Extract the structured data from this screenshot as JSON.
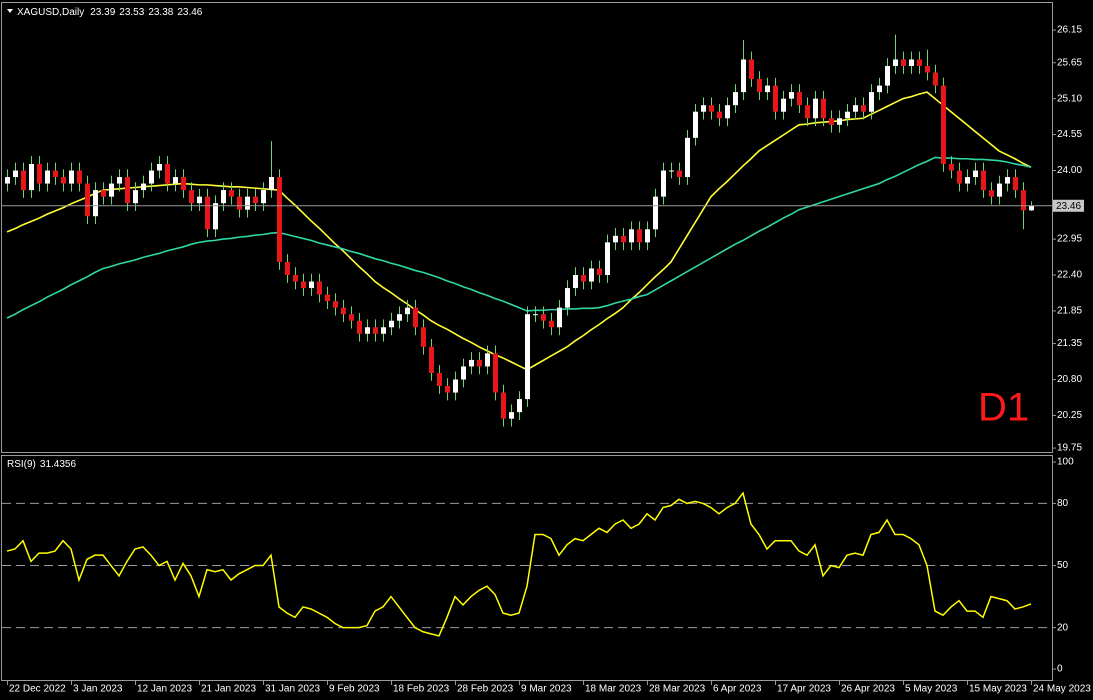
{
  "chart_data": [
    {
      "type": "candlestick",
      "title": "XAGUSD,Daily",
      "annotation": "D1",
      "up_color": "#ffffff",
      "down_color": "#e8151b",
      "wick_color": "#6fd46f",
      "categories": [
        "22 Dec 2022",
        null,
        null,
        null,
        null,
        null,
        null,
        null,
        "3 Jan 2023",
        null,
        null,
        null,
        null,
        null,
        null,
        null,
        "12 Jan 2023",
        null,
        null,
        null,
        null,
        null,
        null,
        null,
        "21 Jan 2023",
        null,
        null,
        null,
        null,
        null,
        null,
        null,
        "31 Jan 2023",
        null,
        null,
        null,
        null,
        null,
        null,
        null,
        "9 Feb 2023",
        null,
        null,
        null,
        null,
        null,
        null,
        null,
        "18 Feb 2023",
        null,
        null,
        null,
        null,
        null,
        null,
        null,
        "28 Feb 2023",
        null,
        null,
        null,
        null,
        null,
        null,
        null,
        "9 Mar 2023",
        null,
        null,
        null,
        null,
        null,
        null,
        null,
        "18 Mar 2023",
        null,
        null,
        null,
        null,
        null,
        null,
        null,
        "28 Mar 2023",
        null,
        null,
        null,
        null,
        null,
        null,
        null,
        "6 Apr 2023",
        null,
        null,
        null,
        null,
        null,
        null,
        null,
        "17 Apr 2023",
        null,
        null,
        null,
        null,
        null,
        null,
        null,
        "26 Apr 2023",
        null,
        null,
        null,
        null,
        null,
        null,
        null,
        "5 May 2023",
        null,
        null,
        null,
        null,
        null,
        null,
        null,
        "15 May 2023",
        null,
        null,
        null,
        null,
        null,
        null,
        null,
        "24 May 2023"
      ],
      "open": [
        23.8,
        23.9,
        24.0,
        23.7,
        24.1,
        23.8,
        24.0,
        23.9,
        23.8,
        24.0,
        23.8,
        23.3,
        23.7,
        23.6,
        23.8,
        23.9,
        23.5,
        23.7,
        23.8,
        24.0,
        24.1,
        23.8,
        23.9,
        23.7,
        23.5,
        23.6,
        23.1,
        23.5,
        23.7,
        23.6,
        23.4,
        23.6,
        23.5,
        23.7,
        23.9,
        22.6,
        22.4,
        22.3,
        22.2,
        22.3,
        22.1,
        22.0,
        21.9,
        21.8,
        21.7,
        21.5,
        21.6,
        21.5,
        21.6,
        21.7,
        21.8,
        21.9,
        21.6,
        21.3,
        20.9,
        20.7,
        20.6,
        20.8,
        21.0,
        21.1,
        21.0,
        21.2,
        20.6,
        20.2,
        20.3,
        20.5,
        21.8,
        21.8,
        21.7,
        21.6,
        21.9,
        22.2,
        22.4,
        22.3,
        22.5,
        22.4,
        22.9,
        23.0,
        22.9,
        23.1,
        22.9,
        23.1,
        23.6,
        24.0,
        24.0,
        23.9,
        24.5,
        24.9,
        25.0,
        24.9,
        24.8,
        25.0,
        25.2,
        25.7,
        25.4,
        25.2,
        25.3,
        24.9,
        25.1,
        25.2,
        25.0,
        24.8,
        25.1,
        24.8,
        24.7,
        24.8,
        24.9,
        25.0,
        24.9,
        25.2,
        25.3,
        25.6,
        25.7,
        25.6,
        25.7,
        25.6,
        25.5,
        25.3,
        24.1,
        24.0,
        23.8,
        23.9,
        24.0,
        23.7,
        23.6,
        23.8,
        23.9,
        23.7,
        23.39
      ],
      "high": [
        24.02,
        24.12,
        24.12,
        24.22,
        24.22,
        24.12,
        24.12,
        24.02,
        24.12,
        24.12,
        23.92,
        23.82,
        23.82,
        23.92,
        24.02,
        24.02,
        23.82,
        23.92,
        24.12,
        24.22,
        24.22,
        24.02,
        24.02,
        23.82,
        23.72,
        23.72,
        23.62,
        23.82,
        23.82,
        23.72,
        23.72,
        23.72,
        23.82,
        24.45,
        24.02,
        22.72,
        22.52,
        22.42,
        22.42,
        22.42,
        22.22,
        22.12,
        22.02,
        21.92,
        21.82,
        21.72,
        21.72,
        21.72,
        21.82,
        21.92,
        22.02,
        22.02,
        21.72,
        21.42,
        21.02,
        20.82,
        20.92,
        21.12,
        21.22,
        21.22,
        21.32,
        21.32,
        20.72,
        20.42,
        20.62,
        21.92,
        21.92,
        21.92,
        21.82,
        22.02,
        22.32,
        22.52,
        22.52,
        22.62,
        22.62,
        23.02,
        23.12,
        23.12,
        23.22,
        23.22,
        23.22,
        23.72,
        24.12,
        24.12,
        24.12,
        24.62,
        25.02,
        25.12,
        25.12,
        25.02,
        25.12,
        25.32,
        26.0,
        25.82,
        25.52,
        25.42,
        25.42,
        25.22,
        25.32,
        25.32,
        25.12,
        25.22,
        25.22,
        24.92,
        24.92,
        25.02,
        25.12,
        25.12,
        25.32,
        25.42,
        25.72,
        26.08,
        25.82,
        25.82,
        25.82,
        25.85,
        25.62,
        25.42,
        24.22,
        24.12,
        24.02,
        24.12,
        24.12,
        23.82,
        23.92,
        24.02,
        24.02,
        23.82,
        23.53
      ],
      "low": [
        23.68,
        23.78,
        23.58,
        23.58,
        23.68,
        23.68,
        23.78,
        23.68,
        23.68,
        23.68,
        23.18,
        23.18,
        23.48,
        23.48,
        23.68,
        23.38,
        23.38,
        23.58,
        23.68,
        23.88,
        23.68,
        23.68,
        23.58,
        23.38,
        23.38,
        22.98,
        22.98,
        23.38,
        23.48,
        23.28,
        23.28,
        23.38,
        23.38,
        23.58,
        22.48,
        22.28,
        22.18,
        22.08,
        22.08,
        21.98,
        21.88,
        21.78,
        21.68,
        21.58,
        21.38,
        21.38,
        21.38,
        21.38,
        21.48,
        21.58,
        21.68,
        21.48,
        21.18,
        20.78,
        20.58,
        20.48,
        20.48,
        20.68,
        20.88,
        20.88,
        20.88,
        20.48,
        20.08,
        20.08,
        20.18,
        20.38,
        21.68,
        21.58,
        21.48,
        21.48,
        21.78,
        22.08,
        22.18,
        22.18,
        22.28,
        22.28,
        22.78,
        22.78,
        22.78,
        22.78,
        22.78,
        22.98,
        23.48,
        23.88,
        23.78,
        23.78,
        24.38,
        24.78,
        24.78,
        24.68,
        24.68,
        24.88,
        25.08,
        25.28,
        25.08,
        25.08,
        24.78,
        24.78,
        24.98,
        24.88,
        24.68,
        24.68,
        24.68,
        24.58,
        24.58,
        24.68,
        24.78,
        24.78,
        24.78,
        25.08,
        25.18,
        25.48,
        25.48,
        25.48,
        25.48,
        25.38,
        25.18,
        23.98,
        23.88,
        23.68,
        23.68,
        23.78,
        23.58,
        23.48,
        23.48,
        23.68,
        23.58,
        23.1,
        23.38
      ],
      "close": [
        23.9,
        24.0,
        23.7,
        24.1,
        23.8,
        24.0,
        23.9,
        23.8,
        24.0,
        23.8,
        23.3,
        23.7,
        23.6,
        23.8,
        23.9,
        23.5,
        23.7,
        23.8,
        24.0,
        24.1,
        23.8,
        23.9,
        23.7,
        23.5,
        23.6,
        23.1,
        23.5,
        23.7,
        23.6,
        23.4,
        23.6,
        23.5,
        23.7,
        23.9,
        22.6,
        22.4,
        22.3,
        22.2,
        22.3,
        22.1,
        22.0,
        21.9,
        21.8,
        21.7,
        21.5,
        21.6,
        21.5,
        21.6,
        21.7,
        21.8,
        21.9,
        21.6,
        21.3,
        20.9,
        20.7,
        20.6,
        20.8,
        21.0,
        21.1,
        21.0,
        21.2,
        20.6,
        20.2,
        20.3,
        20.5,
        21.8,
        21.8,
        21.7,
        21.6,
        21.9,
        22.2,
        22.4,
        22.3,
        22.5,
        22.4,
        22.9,
        23.0,
        22.9,
        23.1,
        22.9,
        23.1,
        23.6,
        24.0,
        24.0,
        23.9,
        24.5,
        24.9,
        25.0,
        24.9,
        24.8,
        25.0,
        25.2,
        25.7,
        25.4,
        25.2,
        25.3,
        24.9,
        25.1,
        25.2,
        25.0,
        24.8,
        25.1,
        24.8,
        24.7,
        24.8,
        24.9,
        25.0,
        24.9,
        25.2,
        25.3,
        25.6,
        25.7,
        25.6,
        25.7,
        25.6,
        25.5,
        25.3,
        24.1,
        24.0,
        23.8,
        23.9,
        24.0,
        23.7,
        23.6,
        23.8,
        23.9,
        23.7,
        23.39,
        23.46
      ],
      "overlays": [
        {
          "color": "#ffff33",
          "values": [
            23.06,
            23.11,
            23.17,
            23.22,
            23.27,
            23.33,
            23.38,
            23.43,
            23.49,
            23.54,
            23.59,
            23.65,
            23.7,
            23.71,
            23.72,
            23.73,
            23.74,
            23.75,
            23.76,
            23.77,
            23.78,
            23.79,
            23.8,
            23.79,
            23.78,
            23.78,
            23.77,
            23.76,
            23.75,
            23.75,
            23.74,
            23.73,
            23.72,
            23.71,
            23.7,
            23.58,
            23.47,
            23.35,
            23.23,
            23.12,
            23.0,
            22.88,
            22.77,
            22.65,
            22.53,
            22.42,
            22.3,
            22.21,
            22.13,
            22.04,
            21.96,
            21.87,
            21.79,
            21.7,
            21.63,
            21.57,
            21.5,
            21.43,
            21.37,
            21.3,
            21.24,
            21.18,
            21.13,
            21.07,
            21.01,
            20.95,
            21.02,
            21.09,
            21.16,
            21.23,
            21.3,
            21.39,
            21.47,
            21.56,
            21.64,
            21.73,
            21.81,
            21.9,
            22.02,
            22.13,
            22.25,
            22.37,
            22.48,
            22.6,
            22.8,
            23.0,
            23.2,
            23.4,
            23.6,
            23.72,
            23.83,
            23.95,
            24.07,
            24.18,
            24.3,
            24.38,
            24.46,
            24.54,
            24.62,
            24.7,
            24.71,
            24.73,
            24.74,
            24.75,
            24.76,
            24.78,
            24.79,
            24.8,
            24.86,
            24.92,
            24.98,
            25.04,
            25.1,
            25.13,
            25.17,
            25.2,
            25.1,
            25.0,
            24.9,
            24.8,
            24.7,
            24.6,
            24.5,
            24.4,
            24.3,
            24.24,
            24.18,
            24.11,
            24.05
          ]
        },
        {
          "color": "#2fd6a6",
          "values": [
            21.74,
            21.8,
            21.87,
            21.93,
            21.99,
            22.06,
            22.12,
            22.18,
            22.25,
            22.31,
            22.37,
            22.44,
            22.5,
            22.53,
            22.57,
            22.6,
            22.63,
            22.67,
            22.7,
            22.73,
            22.77,
            22.8,
            22.83,
            22.87,
            22.9,
            22.92,
            22.93,
            22.95,
            22.96,
            22.98,
            22.99,
            23.01,
            23.02,
            23.04,
            23.05,
            23.02,
            22.99,
            22.96,
            22.93,
            22.89,
            22.86,
            22.83,
            22.8,
            22.76,
            22.73,
            22.69,
            22.65,
            22.62,
            22.58,
            22.55,
            22.51,
            22.47,
            22.44,
            22.4,
            22.36,
            22.31,
            22.27,
            22.22,
            22.18,
            22.13,
            22.09,
            22.04,
            22.0,
            21.95,
            21.9,
            21.85,
            21.86,
            21.86,
            21.87,
            21.87,
            21.88,
            21.88,
            21.89,
            21.89,
            21.9,
            21.93,
            21.97,
            22.0,
            22.03,
            22.07,
            22.1,
            22.17,
            22.24,
            22.31,
            22.38,
            22.45,
            22.52,
            22.59,
            22.66,
            22.73,
            22.8,
            22.87,
            22.93,
            23.0,
            23.07,
            23.13,
            23.2,
            23.27,
            23.33,
            23.4,
            23.44,
            23.48,
            23.52,
            23.56,
            23.6,
            23.64,
            23.68,
            23.72,
            23.76,
            23.8,
            23.86,
            23.91,
            23.97,
            24.03,
            24.09,
            24.14,
            24.2,
            24.19,
            24.19,
            24.18,
            24.18,
            24.17,
            24.17,
            24.16,
            24.15,
            24.13,
            24.1,
            24.08,
            24.05
          ]
        }
      ],
      "ylim": [
        19.69,
        26.58
      ],
      "yticks": [
        19.75,
        20.25,
        {
          "value": 20.8,
          "label": "20.80"
        },
        21.35,
        21.85,
        {
          "value": 22.4,
          "label": "22.40"
        },
        22.95,
        {
          "value": 24.0,
          "label": "24.00"
        },
        24.55,
        {
          "value": 25.1,
          "label": "25.10"
        },
        25.65,
        26.15
      ]
    },
    {
      "type": "line",
      "title": "RSI(9)",
      "color": "#ffff00",
      "values": [
        57,
        58,
        62,
        52,
        56,
        56,
        57,
        62,
        58,
        43,
        53,
        55,
        55,
        50,
        45,
        52,
        58,
        59,
        55,
        50,
        52,
        43,
        51,
        45,
        35,
        48,
        47,
        48,
        43,
        46,
        48,
        50,
        50,
        55,
        30,
        27,
        25,
        30,
        29,
        27,
        25,
        22,
        20,
        20,
        20,
        21,
        28,
        30,
        35,
        30,
        25,
        20,
        18,
        17,
        16,
        25,
        35,
        31,
        35,
        38,
        40,
        36,
        27,
        26,
        27,
        40,
        65,
        65,
        63,
        55,
        60,
        63,
        62,
        65,
        68,
        66,
        70,
        72,
        68,
        70,
        75,
        72,
        78,
        79,
        82,
        80,
        81,
        80,
        78,
        75,
        78,
        80,
        85,
        70,
        65,
        58,
        62,
        62,
        62,
        57,
        55,
        60,
        45,
        50,
        49,
        55,
        56,
        55,
        65,
        66,
        72,
        65,
        65,
        63,
        60,
        50,
        28,
        26,
        30,
        33,
        28,
        28,
        25,
        35,
        34,
        33,
        29,
        30,
        31.4356
      ],
      "ylim": [
        -5.3,
        103.4
      ],
      "yticks": [
        0,
        20,
        50,
        80,
        100
      ],
      "levels": [
        20,
        50,
        80
      ]
    }
  ]
}
